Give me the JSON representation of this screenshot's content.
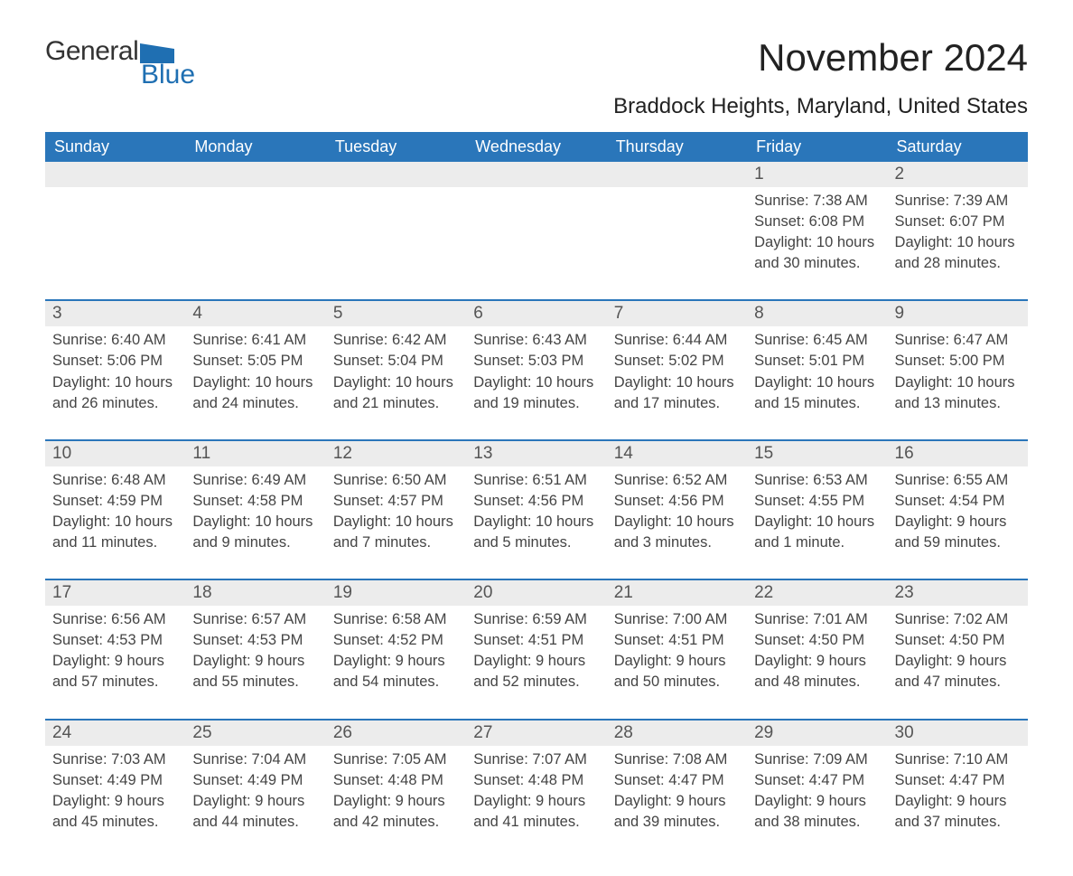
{
  "logo": {
    "text1": "General",
    "text2": "Blue",
    "flag_color": "#1f6fb2"
  },
  "title": "November 2024",
  "subtitle": "Braddock Heights, Maryland, United States",
  "colors": {
    "header_bg": "#2a76ba",
    "header_fg": "#ffffff",
    "daynum_bg": "#ececec",
    "text": "#444444",
    "rule": "#2a76ba"
  },
  "font_sizes": {
    "title": 42,
    "subtitle": 24,
    "th": 18,
    "daynum": 19,
    "detail": 16.5
  },
  "day_headers": [
    "Sunday",
    "Monday",
    "Tuesday",
    "Wednesday",
    "Thursday",
    "Friday",
    "Saturday"
  ],
  "weeks": [
    {
      "days": [
        null,
        null,
        null,
        null,
        null,
        {
          "n": "1",
          "sunrise": "7:38 AM",
          "sunset": "6:08 PM",
          "daylight": "10 hours and 30 minutes."
        },
        {
          "n": "2",
          "sunrise": "7:39 AM",
          "sunset": "6:07 PM",
          "daylight": "10 hours and 28 minutes."
        }
      ]
    },
    {
      "days": [
        {
          "n": "3",
          "sunrise": "6:40 AM",
          "sunset": "5:06 PM",
          "daylight": "10 hours and 26 minutes."
        },
        {
          "n": "4",
          "sunrise": "6:41 AM",
          "sunset": "5:05 PM",
          "daylight": "10 hours and 24 minutes."
        },
        {
          "n": "5",
          "sunrise": "6:42 AM",
          "sunset": "5:04 PM",
          "daylight": "10 hours and 21 minutes."
        },
        {
          "n": "6",
          "sunrise": "6:43 AM",
          "sunset": "5:03 PM",
          "daylight": "10 hours and 19 minutes."
        },
        {
          "n": "7",
          "sunrise": "6:44 AM",
          "sunset": "5:02 PM",
          "daylight": "10 hours and 17 minutes."
        },
        {
          "n": "8",
          "sunrise": "6:45 AM",
          "sunset": "5:01 PM",
          "daylight": "10 hours and 15 minutes."
        },
        {
          "n": "9",
          "sunrise": "6:47 AM",
          "sunset": "5:00 PM",
          "daylight": "10 hours and 13 minutes."
        }
      ]
    },
    {
      "days": [
        {
          "n": "10",
          "sunrise": "6:48 AM",
          "sunset": "4:59 PM",
          "daylight": "10 hours and 11 minutes."
        },
        {
          "n": "11",
          "sunrise": "6:49 AM",
          "sunset": "4:58 PM",
          "daylight": "10 hours and 9 minutes."
        },
        {
          "n": "12",
          "sunrise": "6:50 AM",
          "sunset": "4:57 PM",
          "daylight": "10 hours and 7 minutes."
        },
        {
          "n": "13",
          "sunrise": "6:51 AM",
          "sunset": "4:56 PM",
          "daylight": "10 hours and 5 minutes."
        },
        {
          "n": "14",
          "sunrise": "6:52 AM",
          "sunset": "4:56 PM",
          "daylight": "10 hours and 3 minutes."
        },
        {
          "n": "15",
          "sunrise": "6:53 AM",
          "sunset": "4:55 PM",
          "daylight": "10 hours and 1 minute."
        },
        {
          "n": "16",
          "sunrise": "6:55 AM",
          "sunset": "4:54 PM",
          "daylight": "9 hours and 59 minutes."
        }
      ]
    },
    {
      "days": [
        {
          "n": "17",
          "sunrise": "6:56 AM",
          "sunset": "4:53 PM",
          "daylight": "9 hours and 57 minutes."
        },
        {
          "n": "18",
          "sunrise": "6:57 AM",
          "sunset": "4:53 PM",
          "daylight": "9 hours and 55 minutes."
        },
        {
          "n": "19",
          "sunrise": "6:58 AM",
          "sunset": "4:52 PM",
          "daylight": "9 hours and 54 minutes."
        },
        {
          "n": "20",
          "sunrise": "6:59 AM",
          "sunset": "4:51 PM",
          "daylight": "9 hours and 52 minutes."
        },
        {
          "n": "21",
          "sunrise": "7:00 AM",
          "sunset": "4:51 PM",
          "daylight": "9 hours and 50 minutes."
        },
        {
          "n": "22",
          "sunrise": "7:01 AM",
          "sunset": "4:50 PM",
          "daylight": "9 hours and 48 minutes."
        },
        {
          "n": "23",
          "sunrise": "7:02 AM",
          "sunset": "4:50 PM",
          "daylight": "9 hours and 47 minutes."
        }
      ]
    },
    {
      "days": [
        {
          "n": "24",
          "sunrise": "7:03 AM",
          "sunset": "4:49 PM",
          "daylight": "9 hours and 45 minutes."
        },
        {
          "n": "25",
          "sunrise": "7:04 AM",
          "sunset": "4:49 PM",
          "daylight": "9 hours and 44 minutes."
        },
        {
          "n": "26",
          "sunrise": "7:05 AM",
          "sunset": "4:48 PM",
          "daylight": "9 hours and 42 minutes."
        },
        {
          "n": "27",
          "sunrise": "7:07 AM",
          "sunset": "4:48 PM",
          "daylight": "9 hours and 41 minutes."
        },
        {
          "n": "28",
          "sunrise": "7:08 AM",
          "sunset": "4:47 PM",
          "daylight": "9 hours and 39 minutes."
        },
        {
          "n": "29",
          "sunrise": "7:09 AM",
          "sunset": "4:47 PM",
          "daylight": "9 hours and 38 minutes."
        },
        {
          "n": "30",
          "sunrise": "7:10 AM",
          "sunset": "4:47 PM",
          "daylight": "9 hours and 37 minutes."
        }
      ]
    }
  ],
  "labels": {
    "sunrise": "Sunrise: ",
    "sunset": "Sunset: ",
    "daylight": "Daylight: "
  }
}
